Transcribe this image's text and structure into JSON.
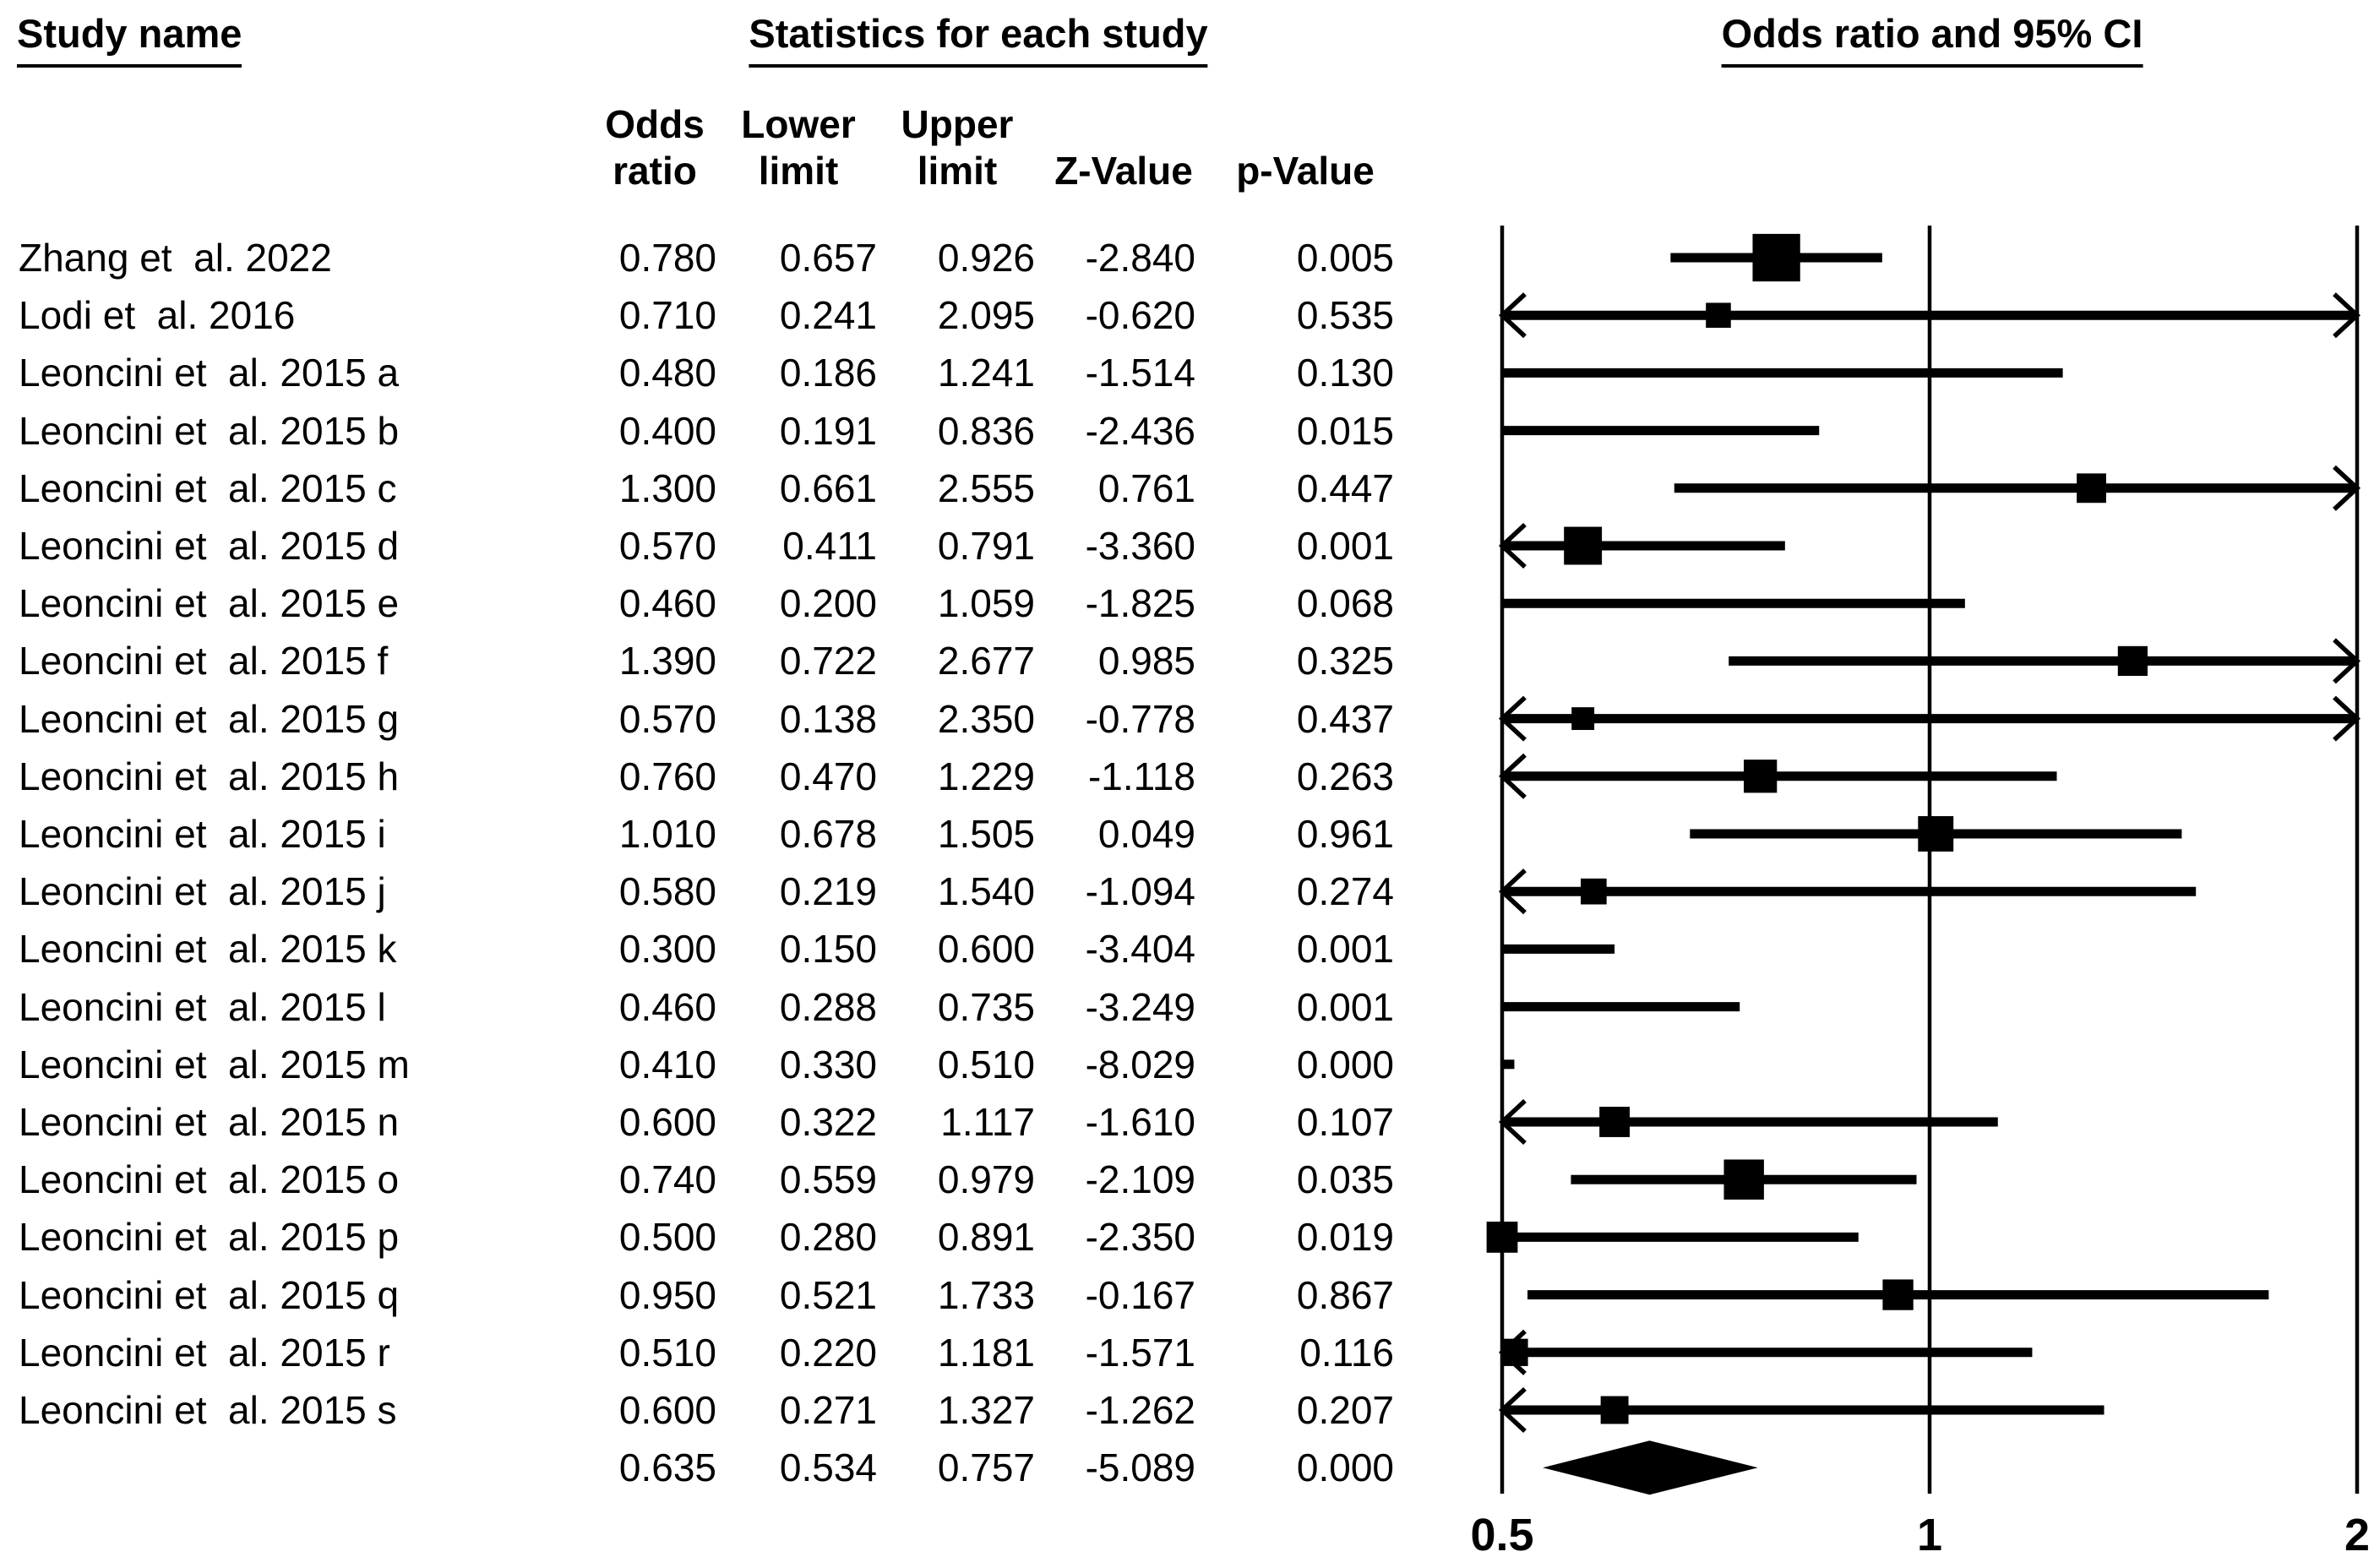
{
  "headers": {
    "study_name": "Study name",
    "statistics": "Statistics for each study",
    "plot": "Odds ratio and 95% CI"
  },
  "columns": {
    "odds": [
      "Odds",
      "ratio"
    ],
    "lower": [
      "Lower",
      "limit"
    ],
    "upper": [
      "Upper",
      "limit"
    ],
    "z": [
      "Z-Value"
    ],
    "p": [
      "p-Value"
    ]
  },
  "chart_data": {
    "type": "forest",
    "title": "Odds ratio and 95% CI",
    "x_axis": {
      "scale": "log2",
      "min": 0.5,
      "max": 2,
      "ticks": [
        0.5,
        1,
        2
      ],
      "tick_labels": [
        "0.5",
        "1",
        "2"
      ],
      "reference_line": 1
    },
    "studies": [
      {
        "name": "Zhang et  al. 2022",
        "or": "0.780",
        "lower": "0.657",
        "upper": "0.926",
        "z": "-2.840",
        "p": "0.005"
      },
      {
        "name": "Lodi et  al. 2016",
        "or": "0.710",
        "lower": "0.241",
        "upper": "2.095",
        "z": "-0.620",
        "p": "0.535"
      },
      {
        "name": "Leoncini et  al. 2015 a",
        "or": "0.480",
        "lower": "0.186",
        "upper": "1.241",
        "z": "-1.514",
        "p": "0.130"
      },
      {
        "name": "Leoncini et  al. 2015 b",
        "or": "0.400",
        "lower": "0.191",
        "upper": "0.836",
        "z": "-2.436",
        "p": "0.015"
      },
      {
        "name": "Leoncini et  al. 2015 c",
        "or": "1.300",
        "lower": "0.661",
        "upper": "2.555",
        "z": "0.761",
        "p": "0.447"
      },
      {
        "name": "Leoncini et  al. 2015 d",
        "or": "0.570",
        "lower": "0.411",
        "upper": "0.791",
        "z": "-3.360",
        "p": "0.001"
      },
      {
        "name": "Leoncini et  al. 2015 e",
        "or": "0.460",
        "lower": "0.200",
        "upper": "1.059",
        "z": "-1.825",
        "p": "0.068"
      },
      {
        "name": "Leoncini et  al. 2015 f",
        "or": "1.390",
        "lower": "0.722",
        "upper": "2.677",
        "z": "0.985",
        "p": "0.325"
      },
      {
        "name": "Leoncini et  al. 2015 g",
        "or": "0.570",
        "lower": "0.138",
        "upper": "2.350",
        "z": "-0.778",
        "p": "0.437"
      },
      {
        "name": "Leoncini et  al. 2015 h",
        "or": "0.760",
        "lower": "0.470",
        "upper": "1.229",
        "z": "-1.118",
        "p": "0.263"
      },
      {
        "name": "Leoncini et  al. 2015 i",
        "or": "1.010",
        "lower": "0.678",
        "upper": "1.505",
        "z": "0.049",
        "p": "0.961"
      },
      {
        "name": "Leoncini et  al. 2015 j",
        "or": "0.580",
        "lower": "0.219",
        "upper": "1.540",
        "z": "-1.094",
        "p": "0.274"
      },
      {
        "name": "Leoncini et  al. 2015 k",
        "or": "0.300",
        "lower": "0.150",
        "upper": "0.600",
        "z": "-3.404",
        "p": "0.001"
      },
      {
        "name": "Leoncini et  al. 2015 l",
        "or": "0.460",
        "lower": "0.288",
        "upper": "0.735",
        "z": "-3.249",
        "p": "0.001"
      },
      {
        "name": "Leoncini et  al. 2015 m",
        "or": "0.410",
        "lower": "0.330",
        "upper": "0.510",
        "z": "-8.029",
        "p": "0.000"
      },
      {
        "name": "Leoncini et  al. 2015 n",
        "or": "0.600",
        "lower": "0.322",
        "upper": "1.117",
        "z": "-1.610",
        "p": "0.107"
      },
      {
        "name": "Leoncini et  al. 2015 o",
        "or": "0.740",
        "lower": "0.559",
        "upper": "0.979",
        "z": "-2.109",
        "p": "0.035"
      },
      {
        "name": "Leoncini et  al. 2015 p",
        "or": "0.500",
        "lower": "0.280",
        "upper": "0.891",
        "z": "-2.350",
        "p": "0.019"
      },
      {
        "name": "Leoncini et  al. 2015 q",
        "or": "0.950",
        "lower": "0.521",
        "upper": "1.733",
        "z": "-0.167",
        "p": "0.867"
      },
      {
        "name": "Leoncini et  al. 2015 r",
        "or": "0.510",
        "lower": "0.220",
        "upper": "1.181",
        "z": "-1.571",
        "p": "0.116"
      },
      {
        "name": "Leoncini et  al. 2015 s",
        "or": "0.600",
        "lower": "0.271",
        "upper": "1.327",
        "z": "-1.262",
        "p": "0.207"
      }
    ],
    "overall": {
      "name": "",
      "or": "0.635",
      "lower": "0.534",
      "upper": "0.757",
      "z": "-5.089",
      "p": "0.000"
    }
  }
}
